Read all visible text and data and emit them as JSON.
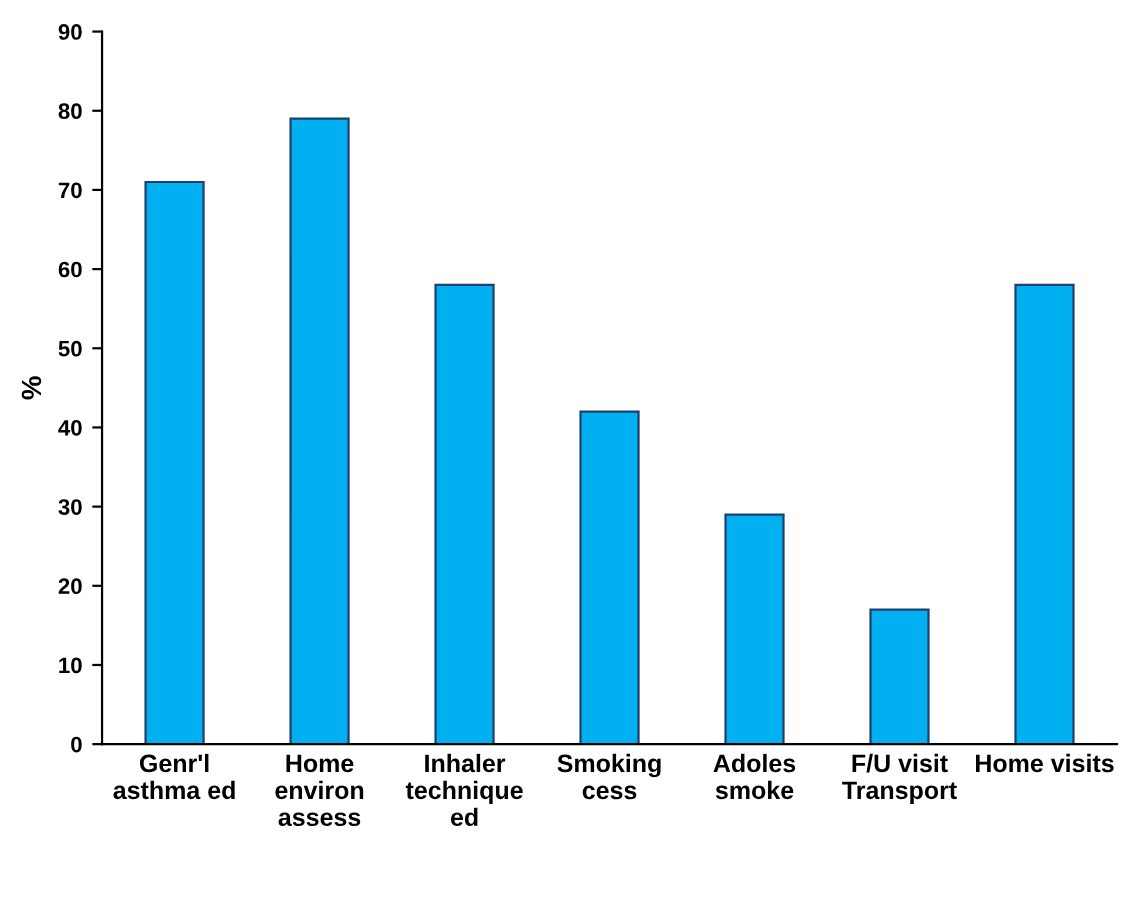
{
  "chart_data": {
    "type": "bar",
    "ylabel": "%",
    "categories": [
      "Genr'l\nasthma ed",
      "Home\nenviron\nassess",
      "Inhaler\ntechnique\ned",
      "Smoking\ncess",
      "Adoles\nsmoke",
      "F/U visit\nTransport",
      "Home visits"
    ],
    "values": [
      71,
      79,
      58,
      42,
      29,
      17,
      58
    ],
    "color": "#00b0f0",
    "ylim": [
      0,
      90
    ],
    "yticks": [
      0,
      10,
      20,
      30,
      40,
      50,
      60,
      70,
      80,
      90
    ],
    "grid": false
  }
}
